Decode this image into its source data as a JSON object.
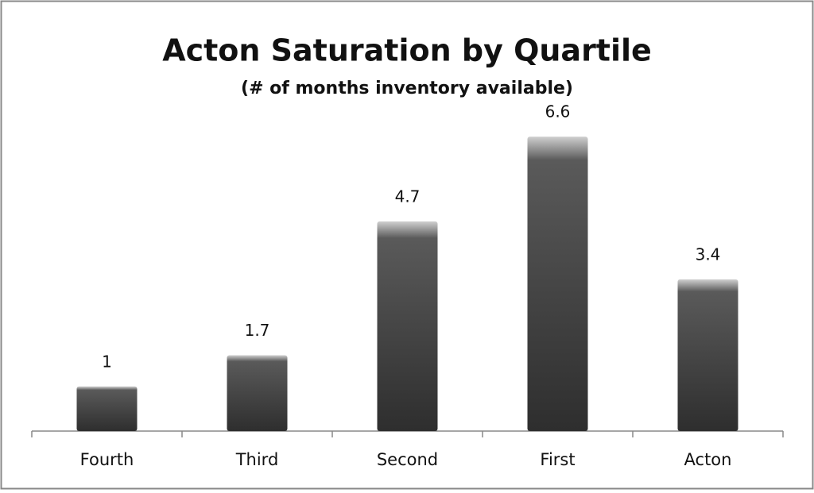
{
  "chart_data": {
    "type": "bar",
    "title": "Acton Saturation by Quartile",
    "subtitle": "(# of months inventory available)",
    "categories": [
      "Fourth",
      "Third",
      "Second",
      "First",
      "Acton"
    ],
    "values": [
      1,
      1.7,
      4.7,
      6.6,
      3.4
    ],
    "color": "#5a5a5a"
  }
}
